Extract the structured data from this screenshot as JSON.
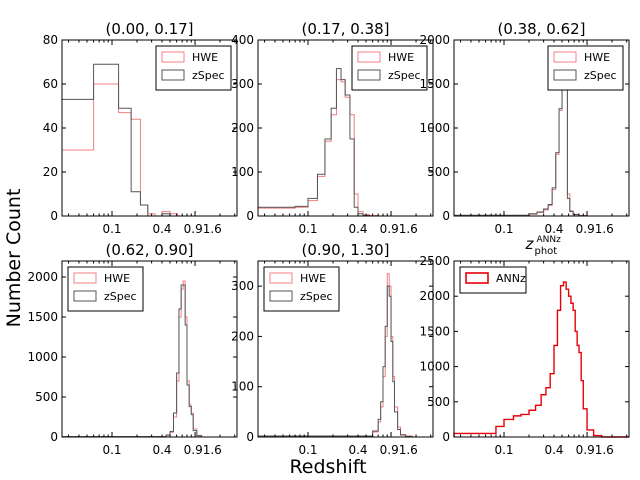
{
  "figure": {
    "ylabel": "Number Count",
    "xlabel": "Redshift"
  },
  "chart_data": [
    {
      "type": "histogram",
      "title": "(0.00, 0.17]",
      "xscale": "log",
      "xlim": [
        0.025,
        3.2
      ],
      "xticks": [
        "0.1",
        "0.4",
        "0.91.6"
      ],
      "ylim": [
        0,
        80
      ],
      "yticks": [
        0,
        20,
        40,
        60,
        80
      ],
      "legend": "top-right",
      "bin_edges": [
        0.025,
        0.06,
        0.12,
        0.17,
        0.22,
        0.27,
        0.33,
        0.4,
        0.5,
        0.62,
        0.75,
        0.9,
        1.1,
        1.3,
        1.6,
        3.2
      ],
      "series": [
        {
          "name": "HWE",
          "color": "#f08080",
          "values": [
            30,
            60,
            47,
            44,
            5,
            1,
            0,
            2,
            1,
            0,
            0,
            0,
            0,
            0,
            0
          ]
        },
        {
          "name": "zSpec",
          "color": "#555555",
          "values": [
            53,
            69,
            49,
            11,
            5,
            0,
            0,
            1,
            0,
            0,
            0,
            0,
            0,
            0,
            0
          ]
        }
      ]
    },
    {
      "type": "histogram",
      "title": "(0.17, 0.38]",
      "xscale": "log",
      "xlim": [
        0.025,
        3.2
      ],
      "xticks": [
        "0.1",
        "0.4",
        "0.91.6"
      ],
      "ylim": [
        0,
        400
      ],
      "yticks": [
        0,
        100,
        200,
        300,
        400
      ],
      "legend": "top-right",
      "bin_edges": [
        0.025,
        0.07,
        0.1,
        0.13,
        0.16,
        0.19,
        0.22,
        0.25,
        0.28,
        0.32,
        0.36,
        0.4,
        0.46,
        0.55,
        0.7,
        3.2
      ],
      "series": [
        {
          "name": "HWE",
          "color": "#f08080",
          "values": [
            18,
            20,
            35,
            90,
            170,
            230,
            310,
            305,
            270,
            230,
            50,
            10,
            3,
            1,
            0
          ]
        },
        {
          "name": "zSpec",
          "color": "#555555",
          "values": [
            20,
            22,
            40,
            95,
            175,
            245,
            335,
            310,
            275,
            175,
            20,
            5,
            1,
            0,
            0
          ]
        }
      ]
    },
    {
      "type": "histogram",
      "title": "(0.38, 0.62]",
      "xscale": "log",
      "xlim": [
        0.025,
        3.2
      ],
      "xticks": [
        "0.1",
        "0.4",
        "0.91.6"
      ],
      "ylim": [
        0,
        2000
      ],
      "yticks": [
        0,
        500,
        1000,
        1500,
        2000
      ],
      "legend": "top-right",
      "bin_edges": [
        0.025,
        0.2,
        0.25,
        0.3,
        0.34,
        0.38,
        0.42,
        0.46,
        0.5,
        0.54,
        0.58,
        0.62,
        0.68,
        0.8,
        1.0,
        3.2
      ],
      "series": [
        {
          "name": "HWE",
          "color": "#f08080",
          "values": [
            5,
            20,
            40,
            70,
            120,
            300,
            700,
            1200,
            1750,
            1500,
            250,
            60,
            20,
            5,
            0
          ]
        },
        {
          "name": "zSpec",
          "color": "#555555",
          "values": [
            8,
            25,
            45,
            80,
            130,
            320,
            720,
            1220,
            1720,
            1600,
            200,
            50,
            15,
            3,
            0
          ]
        }
      ]
    },
    {
      "type": "histogram",
      "title": "(0.62, 0.90]",
      "xscale": "log",
      "xlim": [
        0.025,
        3.2
      ],
      "xticks": [
        "0.1",
        "0.4",
        "0.91.6"
      ],
      "ylim": [
        0,
        2200
      ],
      "yticks": [
        0,
        500,
        1000,
        1500,
        2000
      ],
      "legend": "top-left",
      "bin_edges": [
        0.025,
        0.45,
        0.5,
        0.55,
        0.6,
        0.64,
        0.68,
        0.72,
        0.76,
        0.8,
        0.85,
        0.9,
        0.95,
        1.05,
        1.2,
        3.2
      ],
      "series": [
        {
          "name": "HWE",
          "color": "#f08080",
          "values": [
            5,
            20,
            60,
            250,
            700,
            1500,
            1850,
            1950,
            1500,
            700,
            400,
            300,
            100,
            20,
            0
          ]
        },
        {
          "name": "zSpec",
          "color": "#555555",
          "values": [
            5,
            25,
            70,
            300,
            800,
            1600,
            1900,
            1900,
            1400,
            650,
            380,
            280,
            80,
            15,
            0
          ]
        }
      ]
    },
    {
      "type": "histogram",
      "title": "(0.90, 1.30]",
      "xscale": "log",
      "xlim": [
        0.025,
        3.2
      ],
      "xticks": [
        "0.1",
        "0.4",
        "0.91.6"
      ],
      "ylim": [
        0,
        350
      ],
      "yticks": [
        0,
        100,
        200,
        300
      ],
      "legend": "top-left",
      "bin_edges": [
        0.025,
        0.6,
        0.7,
        0.75,
        0.8,
        0.85,
        0.9,
        0.95,
        1.0,
        1.05,
        1.1,
        1.2,
        1.3,
        1.5,
        1.8,
        3.2
      ],
      "series": [
        {
          "name": "HWE",
          "color": "#f08080",
          "values": [
            2,
            10,
            30,
            60,
            120,
            200,
            325,
            300,
            200,
            120,
            60,
            20,
            5,
            2,
            0
          ]
        },
        {
          "name": "zSpec",
          "color": "#555555",
          "values": [
            2,
            12,
            35,
            70,
            140,
            220,
            300,
            280,
            190,
            110,
            50,
            15,
            4,
            1,
            0
          ]
        }
      ]
    },
    {
      "type": "histogram",
      "title": "z_phot^ANNz",
      "title_main": "z",
      "title_sub": "phot",
      "title_sup": "ANNz",
      "xscale": "log",
      "xlim": [
        0.025,
        3.2
      ],
      "xticks": [
        "0.1",
        "0.4",
        "0.91.6"
      ],
      "ylim": [
        0,
        2500
      ],
      "yticks": [
        0,
        500,
        1000,
        1500,
        2000,
        2500
      ],
      "legend": "top-left",
      "bin_edges": [
        0.025,
        0.08,
        0.1,
        0.13,
        0.16,
        0.2,
        0.24,
        0.28,
        0.32,
        0.36,
        0.4,
        0.44,
        0.48,
        0.52,
        0.56,
        0.6,
        0.64,
        0.68,
        0.72,
        0.76,
        0.8,
        0.85,
        0.9,
        1.0,
        1.2,
        1.5,
        3.2
      ],
      "series": [
        {
          "name": "ANNz",
          "color": "#e8000b",
          "values": [
            50,
            150,
            250,
            300,
            320,
            380,
            450,
            600,
            700,
            900,
            1300,
            1800,
            2150,
            2200,
            2100,
            2000,
            1900,
            1800,
            1500,
            1300,
            1200,
            800,
            400,
            100,
            20,
            0
          ]
        }
      ]
    }
  ]
}
